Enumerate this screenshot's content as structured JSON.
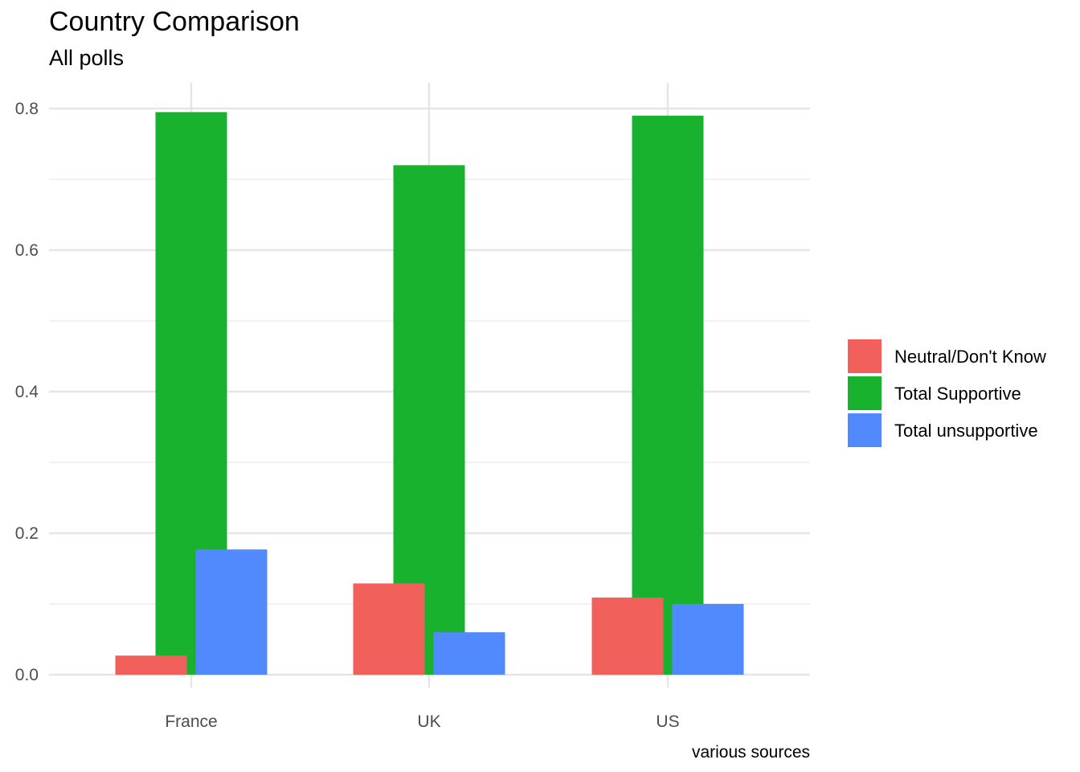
{
  "chart_data": {
    "type": "bar",
    "title": "Country Comparison",
    "subtitle": "All polls",
    "caption": "various sources",
    "xlabel": "",
    "ylabel": "",
    "categories": [
      "France",
      "UK",
      "US"
    ],
    "series": [
      {
        "name": "Total Supportive",
        "color": "#18b22f",
        "values": [
          0.795,
          0.72,
          0.79
        ]
      },
      {
        "name": "Neutral/Don't Know",
        "color": "#f2605c",
        "values": [
          0.027,
          0.129,
          0.109
        ]
      },
      {
        "name": "Total unsupportive",
        "color": "#5189fe",
        "values": [
          0.177,
          0.06,
          0.1
        ]
      }
    ],
    "legend_order": [
      "Neutral/Don't Know",
      "Total Supportive",
      "Total unsupportive"
    ],
    "yticks": [
      "0.0",
      "0.2",
      "0.4",
      "0.6",
      "0.8"
    ],
    "ylim": [
      0,
      0.82
    ],
    "grid": true,
    "legend_position": "right"
  }
}
